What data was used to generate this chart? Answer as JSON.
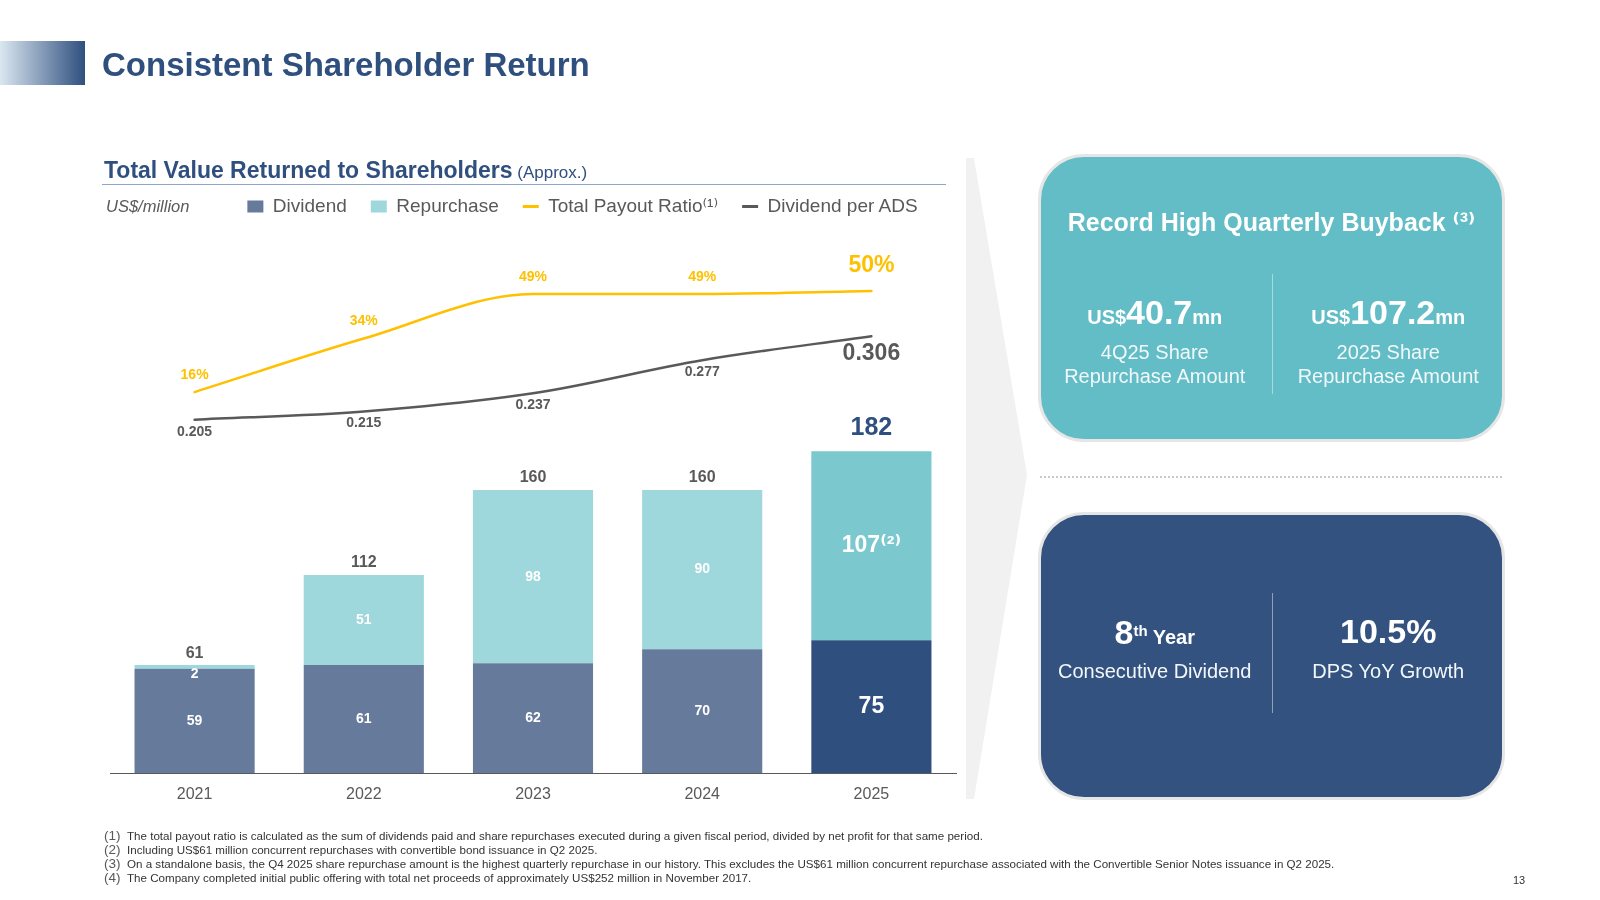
{
  "chart_data": [
    {
      "type": "line",
      "title": "Consistent Shareholder Return",
      "subtitle": "Total Value Returned to Shareholders (Approx.)",
      "annotations": [
        "US$/million"
      ],
      "categories": [
        "2021",
        "2022",
        "2023",
        "2024",
        "2025"
      ],
      "series": [
        {
          "name": "Total Payout Ratio⁽¹⁾",
          "color": "#ffc000",
          "values": [
            16,
            34,
            49,
            49,
            50
          ],
          "value_labels": [
            "16%",
            "34%",
            "49%",
            "49%",
            "50%"
          ]
        }
      ],
      "tick_labels": false,
      "legend": "top"
    },
    {
      "type": "bar",
      "categories": [
        "2021",
        "2022",
        "2023",
        "2024",
        "2025"
      ],
      "stacked": true,
      "series": [
        {
          "name": "Dividend",
          "color": "#667a9c",
          "colors": [
            "#667a9c",
            "#667a9c",
            "#667a9c",
            "#667a9c",
            "#2f4f7e"
          ],
          "values": [
            59,
            61,
            62,
            70,
            75
          ],
          "value_labels": [
            "59",
            "61",
            "62",
            "70",
            "75"
          ]
        },
        {
          "name": "Repurchase",
          "color": "#9ed8dc",
          "colors": [
            "#9ed8dc",
            "#9ed8dc",
            "#9ed8dc",
            "#9ed8dc",
            "#7bc8ce"
          ],
          "values": [
            2,
            51,
            98,
            90,
            107
          ],
          "value_labels": [
            "2",
            "51",
            "98",
            "90",
            "107⁽²⁾"
          ]
        }
      ],
      "totals": [
        "61",
        "112",
        "160",
        "160",
        "182"
      ],
      "tick_labels": "x",
      "legend": "top",
      "annotations": [
        "(1) The total payout ratio is calculated as the sum of dividends paid and share repurchases executed during a given fiscal period, divided by net profit for that same period.",
        "(2) Including US$61 million concurrent repurchases with convertible bond issuance in Q2 2025.",
        "(3) On a standalone basis, the Q4 2025 share repurchase amount is the highest quarterly repurchase in our history. This excludes the US$61 million concurrent repurchase associated with the Convertible Senior Notes issuance in Q2 2025.",
        "(4) The Company completed initial public offering with total net proceeds of approximately US$252 million in November 2017.",
        "13"
      ]
    },
    {
      "type": "line",
      "categories": [
        "2021",
        "2022",
        "2023",
        "2024",
        "2025"
      ],
      "series": [
        {
          "name": "Dividend per ADS",
          "color": "#595959",
          "values": [
            0.205,
            0.215,
            0.237,
            0.277,
            0.306
          ],
          "value_labels": [
            "0.205",
            "0.215",
            "0.237",
            "0.277",
            "0.306"
          ]
        }
      ],
      "tick_labels": false,
      "legend": "top"
    },
    {
      "type": "other",
      "title": "Record High Quarterly Buyback ⁽³⁾",
      "annotations": [
        "US$40.7mn",
        "4Q25 Share Repurchase Amount",
        "US$107.2mn",
        "2025 Share Repurchase Amount"
      ]
    },
    {
      "type": "other",
      "annotations": [
        "8$^{th}$ Year",
        "Consecutive Dividend",
        "10.5%",
        "DPS YoY Growth"
      ]
    }
  ]
}
